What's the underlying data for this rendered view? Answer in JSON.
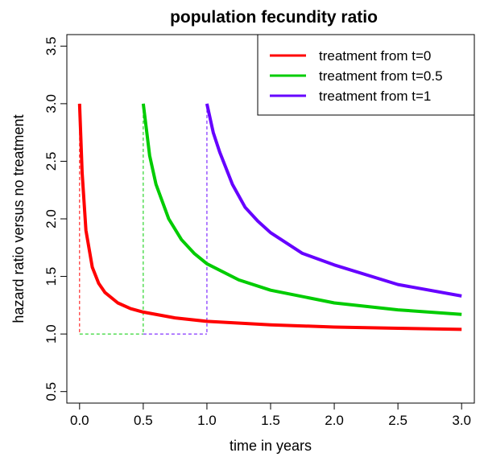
{
  "chart_data": {
    "type": "line",
    "title": "population fecundity ratio",
    "xlabel": "time in years",
    "ylabel": "hazard ratio versus no treatment",
    "xlim": [
      -0.1,
      3.1
    ],
    "ylim": [
      0.4,
      3.6
    ],
    "x_ticks": [
      "0.0",
      "0.5",
      "1.0",
      "1.5",
      "2.0",
      "2.5",
      "3.0"
    ],
    "y_ticks": [
      "0.5",
      "1.0",
      "1.5",
      "2.0",
      "2.5",
      "3.0",
      "3.5"
    ],
    "legend_position": "top-right",
    "grid": false,
    "series": [
      {
        "name": "treatment from t=0",
        "color": "#ff0000",
        "start": 0,
        "x": [
          0,
          0.02,
          0.05,
          0.1,
          0.15,
          0.2,
          0.3,
          0.4,
          0.5,
          0.75,
          1.0,
          1.5,
          2.0,
          2.5,
          3.0
        ],
        "y": [
          3.0,
          2.4,
          1.9,
          1.58,
          1.44,
          1.36,
          1.27,
          1.22,
          1.19,
          1.14,
          1.11,
          1.08,
          1.06,
          1.05,
          1.04
        ]
      },
      {
        "name": "treatment from t=0.5",
        "color": "#00cc00",
        "start": 0.5,
        "x": [
          0.5,
          0.55,
          0.6,
          0.7,
          0.8,
          0.9,
          1.0,
          1.25,
          1.5,
          2.0,
          2.5,
          3.0
        ],
        "y": [
          3.0,
          2.55,
          2.3,
          2.0,
          1.82,
          1.7,
          1.61,
          1.47,
          1.38,
          1.27,
          1.21,
          1.17
        ]
      },
      {
        "name": "treatment from t=1",
        "color": "#6600ff",
        "start": 1.0,
        "x": [
          1.0,
          1.05,
          1.1,
          1.2,
          1.3,
          1.4,
          1.5,
          1.75,
          2.0,
          2.5,
          3.0
        ],
        "y": [
          3.0,
          2.75,
          2.58,
          2.3,
          2.1,
          1.98,
          1.88,
          1.7,
          1.6,
          1.43,
          1.33
        ]
      }
    ]
  }
}
